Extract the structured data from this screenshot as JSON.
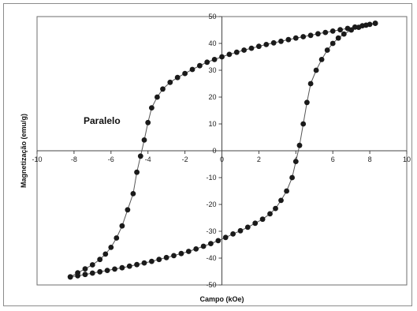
{
  "chart_data": {
    "type": "scatter",
    "title": "",
    "xlabel": "Campo (kOe)",
    "ylabel": "Magnetização (emu/g)",
    "annotation": "Paralelo",
    "xlim": [
      -10,
      10
    ],
    "ylim": [
      -50,
      50
    ],
    "xticks": [
      "-10",
      "-8",
      "-6",
      "-4",
      "-2",
      "0",
      "2",
      "4",
      "6",
      "8",
      "10"
    ],
    "yticks": [
      "50",
      "40",
      "30",
      "20",
      "10",
      "0",
      "-10",
      "-20",
      "-30",
      "-40",
      "-50"
    ],
    "grid": false,
    "legend": "none",
    "point_color": "#1a1a1a",
    "line_color": "#555555",
    "series": [
      {
        "branch": "descending",
        "x": [
          8.3,
          8.0,
          7.6,
          7.2,
          6.8,
          6.4,
          6.0,
          5.6,
          5.2,
          4.8,
          4.4,
          4.0,
          3.6,
          3.2,
          2.8,
          2.4,
          2.0,
          1.6,
          1.2,
          0.8,
          0.4,
          0.0,
          -0.4,
          -0.8,
          -1.2,
          -1.6,
          -2.0,
          -2.4,
          -2.8,
          -3.2,
          -3.5,
          -3.8,
          -4.0,
          -4.2,
          -4.4,
          -4.6,
          -4.8,
          -5.1,
          -5.4,
          -5.7,
          -6.0,
          -6.3,
          -6.6,
          -7.0,
          -7.4,
          -7.8,
          -8.2
        ],
        "y": [
          47.5,
          47.1,
          46.6,
          46.1,
          45.6,
          45.1,
          44.6,
          44.1,
          43.6,
          43.0,
          42.5,
          42.0,
          41.4,
          40.8,
          40.2,
          39.6,
          38.9,
          38.2,
          37.5,
          36.7,
          35.9,
          35.0,
          34.0,
          33.0,
          31.7,
          30.3,
          28.8,
          27.3,
          25.5,
          23.0,
          20.0,
          16.0,
          10.5,
          4.0,
          -2.0,
          -8.0,
          -16.0,
          -22.0,
          -28.0,
          -32.5,
          -36.0,
          -38.5,
          -40.5,
          -42.5,
          -44.0,
          -45.5,
          -47.0
        ]
      },
      {
        "branch": "ascending",
        "x": [
          -8.2,
          -7.8,
          -7.4,
          -7.0,
          -6.6,
          -6.2,
          -5.8,
          -5.4,
          -5.0,
          -4.6,
          -4.2,
          -3.8,
          -3.4,
          -3.0,
          -2.6,
          -2.2,
          -1.8,
          -1.4,
          -1.0,
          -0.6,
          -0.2,
          0.2,
          0.6,
          1.0,
          1.4,
          1.8,
          2.2,
          2.6,
          2.9,
          3.2,
          3.5,
          3.8,
          4.0,
          4.2,
          4.4,
          4.6,
          4.8,
          5.1,
          5.4,
          5.7,
          6.0,
          6.3,
          6.6,
          7.0,
          7.4,
          7.8,
          8.3
        ],
        "y": [
          -47.0,
          -46.6,
          -46.1,
          -45.6,
          -45.1,
          -44.6,
          -44.1,
          -43.6,
          -43.0,
          -42.4,
          -41.8,
          -41.2,
          -40.5,
          -39.8,
          -39.1,
          -38.3,
          -37.5,
          -36.6,
          -35.6,
          -34.6,
          -33.5,
          -32.3,
          -31.0,
          -29.8,
          -28.5,
          -27.0,
          -25.5,
          -23.5,
          -21.5,
          -18.5,
          -15.0,
          -10.0,
          -4.0,
          2.0,
          10.0,
          18.0,
          25.0,
          30.0,
          34.0,
          37.5,
          40.0,
          42.0,
          43.5,
          45.0,
          46.0,
          46.8,
          47.5
        ]
      }
    ]
  }
}
